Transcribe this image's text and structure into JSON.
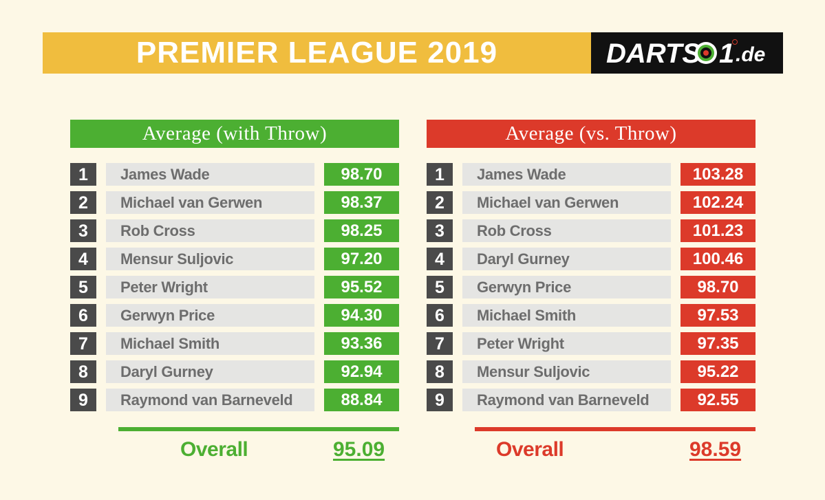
{
  "header": {
    "title": "PREMIER LEAGUE 2019",
    "logo": {
      "prefix": "DARTS",
      "number": "1",
      "domain": ".de",
      "icon": "dartboard-zero-icon"
    }
  },
  "colors": {
    "header_yellow": "#f0bd3e",
    "green": "#4caf32",
    "red": "#dc3a2a",
    "rank_box": "#4a4a4a",
    "name_box": "#e5e5e3",
    "background": "#fdf8e6"
  },
  "left_table": {
    "title": "Average (with Throw)",
    "rows": [
      {
        "rank": "1",
        "name": "James Wade",
        "value": "98.70"
      },
      {
        "rank": "2",
        "name": "Michael van Gerwen",
        "value": "98.37"
      },
      {
        "rank": "3",
        "name": "Rob Cross",
        "value": "98.25"
      },
      {
        "rank": "4",
        "name": "Mensur Suljovic",
        "value": "97.20"
      },
      {
        "rank": "5",
        "name": "Peter Wright",
        "value": "95.52"
      },
      {
        "rank": "6",
        "name": "Gerwyn Price",
        "value": "94.30"
      },
      {
        "rank": "7",
        "name": "Michael Smith",
        "value": "93.36"
      },
      {
        "rank": "8",
        "name": "Daryl Gurney",
        "value": "92.94"
      },
      {
        "rank": "9",
        "name": "Raymond van Barneveld",
        "value": "88.84"
      }
    ],
    "overall_label": "Overall",
    "overall_value": "95.09"
  },
  "right_table": {
    "title": "Average (vs. Throw)",
    "rows": [
      {
        "rank": "1",
        "name": "James Wade",
        "value": "103.28"
      },
      {
        "rank": "2",
        "name": "Michael van Gerwen",
        "value": "102.24"
      },
      {
        "rank": "3",
        "name": "Rob Cross",
        "value": "101.23"
      },
      {
        "rank": "4",
        "name": "Daryl Gurney",
        "value": "100.46"
      },
      {
        "rank": "5",
        "name": "Gerwyn Price",
        "value": "98.70"
      },
      {
        "rank": "6",
        "name": "Michael Smith",
        "value": "97.53"
      },
      {
        "rank": "7",
        "name": "Peter Wright",
        "value": "97.35"
      },
      {
        "rank": "8",
        "name": "Mensur Suljovic",
        "value": "95.22"
      },
      {
        "rank": "9",
        "name": "Raymond van Barneveld",
        "value": "92.55"
      }
    ],
    "overall_label": "Overall",
    "overall_value": "98.59"
  }
}
